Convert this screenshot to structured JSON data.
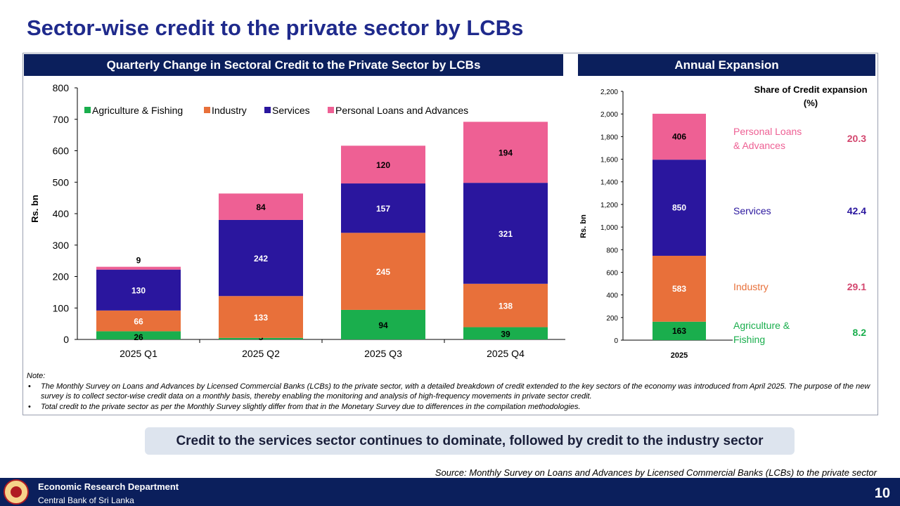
{
  "title": "Sector-wise credit to the private sector by LCBs",
  "left_header": "Quarterly Change in Sectoral Credit to the Private Sector by LCBs",
  "right_header": "Annual Expansion",
  "colors": {
    "agri": "#1aae4d",
    "industry": "#e8703a",
    "services": "#2a169e",
    "personal": "#ee6094",
    "navy": "#0b1f5c"
  },
  "chart_data": [
    {
      "type": "bar",
      "stacked": true,
      "categories": [
        "2025 Q1",
        "2025 Q2",
        "2025 Q3",
        "2025 Q4"
      ],
      "series": [
        {
          "name": "Agriculture & Fishing",
          "values": [
            26,
            5,
            94,
            39
          ]
        },
        {
          "name": "Industry",
          "values": [
            66,
            133,
            245,
            138
          ]
        },
        {
          "name": "Services",
          "values": [
            130,
            242,
            157,
            321
          ]
        },
        {
          "name": "Personal Loans and Advances",
          "values": [
            9,
            84,
            120,
            194
          ]
        }
      ],
      "ylabel": "Rs. bn",
      "ylim": [
        0,
        800
      ],
      "yticks": [
        "0",
        "100",
        "200",
        "300",
        "400",
        "500",
        "600",
        "700",
        "800"
      ],
      "legend": "top-left",
      "grid": false
    },
    {
      "type": "bar",
      "stacked": true,
      "categories": [
        "2025"
      ],
      "series": [
        {
          "name": "Agriculture & Fishing",
          "values": [
            163
          ]
        },
        {
          "name": "Industry",
          "values": [
            583
          ]
        },
        {
          "name": "Services",
          "values": [
            850
          ]
        },
        {
          "name": "Personal Loans & Advances",
          "values": [
            406
          ]
        }
      ],
      "ylabel": "Rs. bn",
      "ylim": [
        0,
        2200
      ],
      "yticks": [
        "0",
        "200",
        "400",
        "600",
        "800",
        "1,000",
        "1,200",
        "1,400",
        "1,600",
        "1,800",
        "2,000",
        "2,200"
      ],
      "share_title": "Share of Credit expansion (%)",
      "share_labels": [
        {
          "label": "Agriculture & Fishing",
          "share": "8.2"
        },
        {
          "label": "Industry",
          "share": "29.1"
        },
        {
          "label": "Services",
          "share": "42.4"
        },
        {
          "label": "Personal Loans & Advances",
          "share": "20.3"
        }
      ],
      "grid": false
    }
  ],
  "note_label": "Note:",
  "notes": [
    "The Monthly Survey on Loans and Advances by Licensed Commercial Banks (LCBs) to the private sector, with a detailed breakdown of credit extended to the key sectors of the economy was introduced from April 2025. The purpose of the new survey is to collect sector-wise credit data on a monthly basis, thereby enabling the monitoring and analysis of high-frequency movements in private sector credit.",
    "Total credit to the private sector as per the Monthly Survey slightly differ from that in the Monetary Survey due to differences in the compilation methodologies."
  ],
  "callout": "Credit to the services sector continues to dominate, followed by credit to the industry sector",
  "source": "Source:  Monthly Survey on Loans and Advances  by Licensed Commercial Banks (LCBs) to the private sector",
  "footer": {
    "dept": "Economic Research Department",
    "bank": "Central Bank of Sri Lanka",
    "page": "10"
  }
}
